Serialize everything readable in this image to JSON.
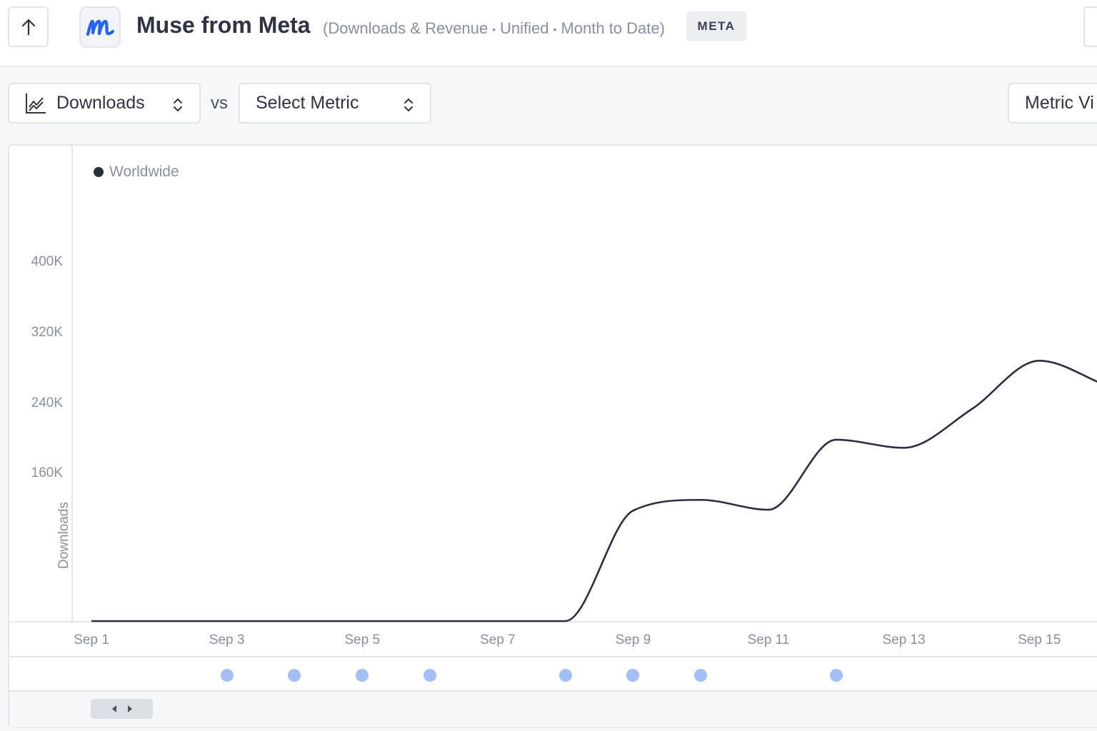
{
  "header": {
    "app_name": "Muse from Meta",
    "subtitle": {
      "part1": "(Downloads & Revenue",
      "part2": "Unified",
      "part3": "Month to Date)",
      "separator": "•"
    },
    "badge": "META",
    "back_icon": "arrow-up-icon",
    "app_icon_letter": "m",
    "app_icon_color": "#2563eb"
  },
  "controls": {
    "primary_metric": "Downloads",
    "vs_label": "vs",
    "secondary_metric_placeholder": "Select Metric",
    "view_button": "Metric Vi",
    "chart_icon": "line-chart-icon",
    "chevron_icon": "chevron-updown-icon"
  },
  "chart_data": {
    "type": "line",
    "legend_position": "top-left",
    "ylabel": "Downloads",
    "yticks": [
      "400K",
      "320K",
      "240K",
      "160K"
    ],
    "ylim": [
      0,
      400000
    ],
    "x": [
      "Sep 1",
      "Sep 2",
      "Sep 3",
      "Sep 4",
      "Sep 5",
      "Sep 6",
      "Sep 7",
      "Sep 8",
      "Sep 9",
      "Sep 10",
      "Sep 11",
      "Sep 12",
      "Sep 13",
      "Sep 14",
      "Sep 15",
      "Sep 16"
    ],
    "xticks": [
      "Sep 1",
      "Sep 3",
      "Sep 5",
      "Sep 7",
      "Sep 9",
      "Sep 11",
      "Sep 13",
      "Sep 15"
    ],
    "series": [
      {
        "name": "Worldwide",
        "color": "#2b2f3d",
        "values": [
          0,
          0,
          0,
          0,
          0,
          0,
          0,
          0,
          123000,
          135000,
          124000,
          202000,
          193000,
          236000,
          290000,
          262000
        ]
      }
    ],
    "event_markers": [
      "Sep 3",
      "Sep 4",
      "Sep 5",
      "Sep 6",
      "Sep 8",
      "Sep 9",
      "Sep 10",
      "Sep 12"
    ],
    "event_color": "#a4bff5",
    "grid": false
  }
}
